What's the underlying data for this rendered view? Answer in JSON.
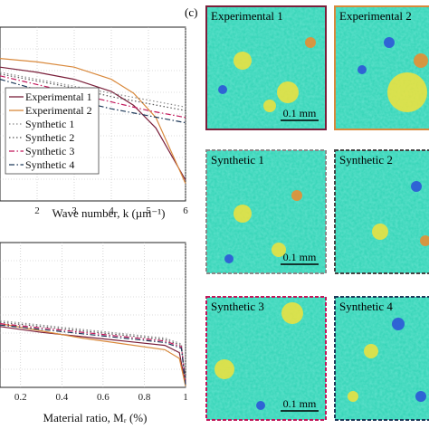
{
  "figure": {
    "panel_c_label": "(c)",
    "maps": [
      {
        "title": "Experimental 1",
        "border": "#7a1f3a",
        "dash": false
      },
      {
        "title": "Experimental 2",
        "border": "#d9893c",
        "dash": false
      },
      {
        "title": "Synthetic 1",
        "border": "#8a8a8a",
        "dash": true
      },
      {
        "title": "Synthetic 2",
        "border": "#444444",
        "dash": true
      },
      {
        "title": "Synthetic 3",
        "border": "#c2185b",
        "dash": true
      },
      {
        "title": "Synthetic 4",
        "border": "#1f3a5a",
        "dash": true
      }
    ],
    "scale_bar_label": "0.1 mm",
    "colors": {
      "map_base": "#2fd3b4",
      "accent_yellow": "#f2e23a",
      "accent_blue": "#2a4fd8",
      "accent_orange": "#f08a2a"
    }
  },
  "chart_data": [
    {
      "type": "line",
      "title": "",
      "xlabel": "Wave number,  k (µm⁻¹)",
      "ylabel": "",
      "x_ticks": [
        "2",
        "3",
        "4",
        "5",
        "6"
      ],
      "xlim": [
        1.0,
        6.0
      ],
      "ylim": [
        0,
        1
      ],
      "grid": true,
      "legend_position": "bottom-left",
      "series": [
        {
          "name": "Experimental 1",
          "color": "#7a1f3a",
          "style": "solid",
          "x": [
            1.0,
            2.0,
            3.0,
            4.0,
            4.6,
            5.2,
            6.0
          ],
          "y": [
            0.77,
            0.74,
            0.7,
            0.63,
            0.55,
            0.42,
            0.12
          ]
        },
        {
          "name": "Experimental 2",
          "color": "#d9893c",
          "style": "solid",
          "x": [
            1.0,
            2.0,
            3.0,
            4.0,
            4.6,
            5.2,
            6.0
          ],
          "y": [
            0.82,
            0.8,
            0.77,
            0.7,
            0.62,
            0.48,
            0.1
          ]
        },
        {
          "name": "Synthetic 1",
          "color": "#8a8a8a",
          "style": "dotted",
          "x": [
            1.0,
            2.0,
            3.0,
            4.0,
            5.0,
            6.0
          ],
          "y": [
            0.74,
            0.7,
            0.66,
            0.62,
            0.58,
            0.54
          ]
        },
        {
          "name": "Synthetic 2",
          "color": "#555555",
          "style": "dotted",
          "x": [
            1.0,
            2.0,
            3.0,
            4.0,
            5.0,
            6.0
          ],
          "y": [
            0.73,
            0.69,
            0.65,
            0.6,
            0.56,
            0.52
          ]
        },
        {
          "name": "Synthetic 3",
          "color": "#c2185b",
          "style": "dashdot",
          "x": [
            1.0,
            2.0,
            3.0,
            4.0,
            5.0,
            6.0
          ],
          "y": [
            0.72,
            0.67,
            0.62,
            0.57,
            0.52,
            0.48
          ]
        },
        {
          "name": "Synthetic 4",
          "color": "#1f3a5a",
          "style": "dashdot",
          "x": [
            1.0,
            2.0,
            3.0,
            4.0,
            5.0,
            6.0
          ],
          "y": [
            0.7,
            0.64,
            0.58,
            0.53,
            0.49,
            0.45
          ]
        }
      ]
    },
    {
      "type": "line",
      "title": "",
      "xlabel": "Material ratio,  Mᵣ (%)",
      "ylabel": "",
      "x_ticks": [
        "0.2",
        "0.4",
        "0.6",
        "0.8",
        "1"
      ],
      "xlim": [
        0.1,
        1.0
      ],
      "ylim": [
        0,
        1
      ],
      "grid": true,
      "series": [
        {
          "name": "Experimental 1",
          "color": "#7a1f3a",
          "style": "solid",
          "x": [
            0.1,
            0.3,
            0.5,
            0.7,
            0.9,
            0.97,
            1.0
          ],
          "y": [
            0.42,
            0.38,
            0.35,
            0.32,
            0.29,
            0.24,
            0.02
          ]
        },
        {
          "name": "Experimental 2",
          "color": "#d9893c",
          "style": "solid",
          "x": [
            0.1,
            0.3,
            0.5,
            0.7,
            0.9,
            0.97,
            1.0
          ],
          "y": [
            0.44,
            0.39,
            0.34,
            0.3,
            0.26,
            0.2,
            0.01
          ]
        },
        {
          "name": "Synthetic 1",
          "color": "#8a8a8a",
          "style": "dotted",
          "x": [
            0.1,
            0.3,
            0.5,
            0.7,
            0.9,
            0.98,
            1.0
          ],
          "y": [
            0.46,
            0.43,
            0.4,
            0.37,
            0.34,
            0.3,
            0.05
          ]
        },
        {
          "name": "Synthetic 2",
          "color": "#555555",
          "style": "dotted",
          "x": [
            0.1,
            0.3,
            0.5,
            0.7,
            0.9,
            0.98,
            1.0
          ],
          "y": [
            0.45,
            0.42,
            0.39,
            0.36,
            0.33,
            0.29,
            0.04
          ]
        },
        {
          "name": "Synthetic 3",
          "color": "#c2185b",
          "style": "dashdot",
          "x": [
            0.1,
            0.3,
            0.5,
            0.7,
            0.9,
            0.98,
            1.0
          ],
          "y": [
            0.44,
            0.41,
            0.38,
            0.35,
            0.32,
            0.28,
            0.03
          ]
        },
        {
          "name": "Synthetic 4",
          "color": "#1f3a5a",
          "style": "dashdot",
          "x": [
            0.1,
            0.3,
            0.5,
            0.7,
            0.9,
            0.98,
            1.0
          ],
          "y": [
            0.43,
            0.4,
            0.37,
            0.34,
            0.31,
            0.27,
            0.02
          ]
        }
      ]
    }
  ]
}
